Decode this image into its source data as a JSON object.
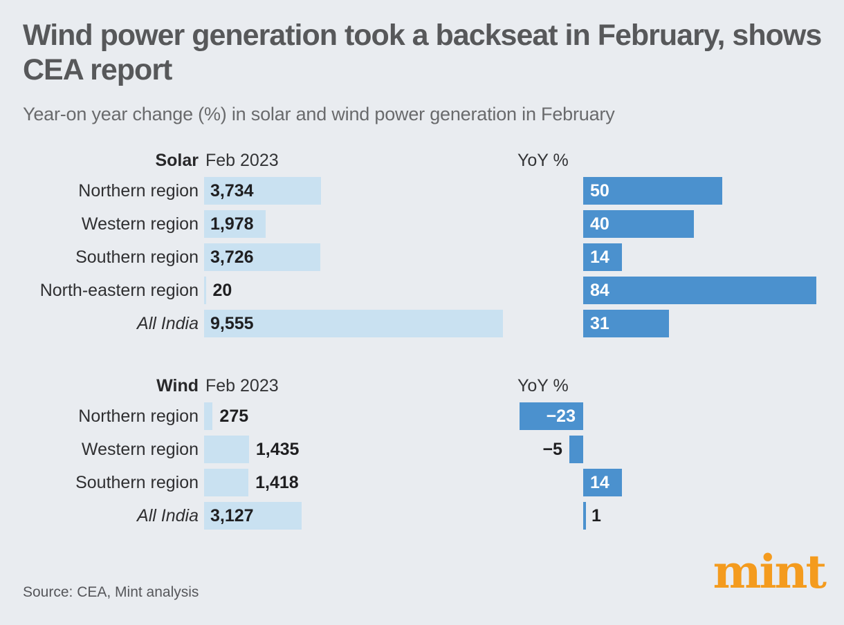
{
  "header": {
    "title": "Wind power generation took a backseat in February, shows\nCEA report",
    "subtitle": "Year-on year change (%) in solar and wind power generation in February"
  },
  "chart_data": {
    "type": "bar",
    "orientation": "horizontal",
    "layout_hints": {
      "shared_linear_scale_for_generation_bars": true,
      "shared_linear_scale_for_yoy_bars": true,
      "negative_yoy_bars_extend_left_of_baseline": true,
      "grid": false,
      "legend": false
    },
    "sections": [
      {
        "name": "Solar",
        "period_label": "Feb 2023",
        "yoy_header": "YoY %",
        "rows": [
          {
            "label": "Northern region",
            "value": 3734,
            "value_label": "3,734",
            "yoy": 50,
            "yoy_label": "50",
            "italic": false
          },
          {
            "label": "Western region",
            "value": 1978,
            "value_label": "1,978",
            "yoy": 40,
            "yoy_label": "40",
            "italic": false
          },
          {
            "label": "Southern region",
            "value": 3726,
            "value_label": "3,726",
            "yoy": 14,
            "yoy_label": "14",
            "italic": false
          },
          {
            "label": "North-eastern region",
            "value": 20,
            "value_label": "20",
            "yoy": 84,
            "yoy_label": "84",
            "italic": false
          },
          {
            "label": "All India",
            "value": 9555,
            "value_label": "9,555",
            "yoy": 31,
            "yoy_label": "31",
            "italic": true
          }
        ]
      },
      {
        "name": "Wind",
        "period_label": "Feb 2023",
        "yoy_header": "YoY %",
        "rows": [
          {
            "label": "Northern region",
            "value": 275,
            "value_label": "275",
            "yoy": -23,
            "yoy_label": "−23",
            "italic": false
          },
          {
            "label": "Western region",
            "value": 1435,
            "value_label": "1,435",
            "yoy": -5,
            "yoy_label": "−5",
            "italic": false
          },
          {
            "label": "Southern region",
            "value": 1418,
            "value_label": "1,418",
            "yoy": 14,
            "yoy_label": "14",
            "italic": false
          },
          {
            "label": "All India",
            "value": 3127,
            "value_label": "3,127",
            "yoy": 1,
            "yoy_label": "1",
            "italic": true
          }
        ]
      }
    ]
  },
  "footer": {
    "source": "Source: CEA, Mint analysis",
    "logo_text": "mint"
  },
  "colors": {
    "background": "#E9ECF0",
    "generation_bar": "#C9E1F1",
    "yoy_bar": "#4B91CE",
    "title_text": "#57585A",
    "subtitle_text": "#696A6C",
    "logo_orange": "#F49B1E"
  }
}
